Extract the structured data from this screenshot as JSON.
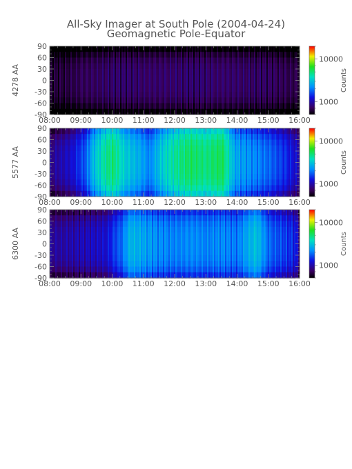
{
  "chart_data": {
    "type": "heatmap",
    "title": "All-Sky Imager at South Pole (2004-04-24)",
    "subtitle": "Geomagnetic Pole-Equator",
    "x_ticks": [
      "08:00",
      "09:00",
      "10:00",
      "11:00",
      "12:00",
      "13:00",
      "14:00",
      "15:00",
      "16:00"
    ],
    "xlim": [
      "08:00",
      "16:00"
    ],
    "y_ticks": [
      90,
      60,
      30,
      0,
      -30,
      -60,
      -90
    ],
    "ylim": [
      -90,
      90
    ],
    "colorbar": {
      "label": "Counts",
      "ticks": [
        10000,
        1000
      ],
      "tick_labels": [
        "10000",
        "1000"
      ],
      "scale": "log",
      "colormap": "rainbow (black-purple-blue-cyan-green-yellow-red)"
    },
    "panels": [
      {
        "ylabel": "4278 AA",
        "color_range": [
          500,
          20000
        ],
        "profile": [
          {
            "t": 8.0,
            "v": 450
          },
          {
            "t": 8.5,
            "v": 470
          },
          {
            "t": 9.0,
            "v": 520
          },
          {
            "t": 10.0,
            "v": 560
          },
          {
            "t": 11.0,
            "v": 560
          },
          {
            "t": 12.0,
            "v": 570
          },
          {
            "t": 13.0,
            "v": 570
          },
          {
            "t": 14.0,
            "v": 560
          },
          {
            "t": 15.0,
            "v": 540
          },
          {
            "t": 15.8,
            "v": 500
          },
          {
            "t": 16.0,
            "v": 480
          }
        ]
      },
      {
        "ylabel": "5577 AA",
        "color_range": [
          500,
          20000
        ],
        "profile": [
          {
            "t": 8.0,
            "v": 650
          },
          {
            "t": 8.7,
            "v": 900
          },
          {
            "t": 9.15,
            "v": 1400
          },
          {
            "t": 9.6,
            "v": 3200
          },
          {
            "t": 10.0,
            "v": 4500
          },
          {
            "t": 10.4,
            "v": 2800
          },
          {
            "t": 10.8,
            "v": 2300
          },
          {
            "t": 11.2,
            "v": 1700
          },
          {
            "t": 11.6,
            "v": 2800
          },
          {
            "t": 12.0,
            "v": 3800
          },
          {
            "t": 12.5,
            "v": 4800
          },
          {
            "t": 13.0,
            "v": 4200
          },
          {
            "t": 13.5,
            "v": 5000
          },
          {
            "t": 13.9,
            "v": 2200
          },
          {
            "t": 14.5,
            "v": 1800
          },
          {
            "t": 15.0,
            "v": 1500
          },
          {
            "t": 15.6,
            "v": 1100
          },
          {
            "t": 16.0,
            "v": 800
          }
        ]
      },
      {
        "ylabel": "6300 AA",
        "color_range": [
          500,
          20000
        ],
        "profile": [
          {
            "t": 8.0,
            "v": 700
          },
          {
            "t": 9.0,
            "v": 800
          },
          {
            "t": 9.8,
            "v": 900
          },
          {
            "t": 10.3,
            "v": 1500
          },
          {
            "t": 10.6,
            "v": 2400
          },
          {
            "t": 11.0,
            "v": 2100
          },
          {
            "t": 11.5,
            "v": 1800
          },
          {
            "t": 12.0,
            "v": 1700
          },
          {
            "t": 12.6,
            "v": 1800
          },
          {
            "t": 13.0,
            "v": 1700
          },
          {
            "t": 13.5,
            "v": 1800
          },
          {
            "t": 14.0,
            "v": 1600
          },
          {
            "t": 14.6,
            "v": 2600
          },
          {
            "t": 15.0,
            "v": 1500
          },
          {
            "t": 15.8,
            "v": 1100
          },
          {
            "t": 16.0,
            "v": 800
          }
        ]
      }
    ]
  }
}
